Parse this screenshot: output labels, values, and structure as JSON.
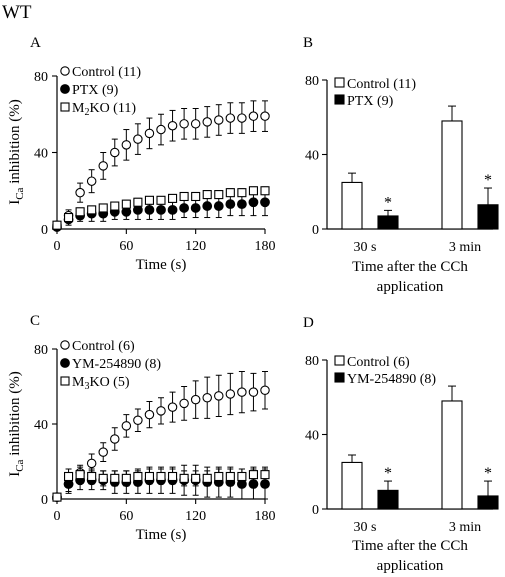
{
  "figure_title": "WT",
  "chart_data": [
    {
      "type": "scatter",
      "panel_label": "A",
      "xlabel": "Time (s)",
      "ylabel_main": "I",
      "ylabel_sub": "Ca",
      "ylabel_rest": " inhibition (%)",
      "xlim": [
        0,
        180
      ],
      "ylim": [
        0,
        80
      ],
      "xticks": [
        0,
        60,
        120,
        180
      ],
      "yticks": [
        0,
        40,
        80
      ],
      "series": [
        {
          "name": "Control (11)",
          "marker": "open-circle",
          "x": [
            0,
            10,
            20,
            30,
            40,
            50,
            60,
            70,
            80,
            90,
            100,
            110,
            120,
            130,
            140,
            150,
            160,
            170,
            180
          ],
          "values": [
            2,
            7,
            19,
            25,
            33,
            40,
            44,
            47,
            50,
            52,
            54,
            55,
            55,
            56,
            57,
            58,
            58,
            59,
            59
          ],
          "errors": [
            1,
            3,
            5,
            6,
            7,
            7,
            8,
            8,
            8,
            8,
            8,
            8,
            8,
            8,
            8,
            8,
            8,
            8,
            8
          ]
        },
        {
          "name": "PTX (9)",
          "name_main": "PTX (9)",
          "marker": "filled-circle",
          "x": [
            0,
            10,
            20,
            30,
            40,
            50,
            60,
            70,
            80,
            90,
            100,
            110,
            120,
            130,
            140,
            150,
            160,
            170,
            180
          ],
          "values": [
            1,
            5,
            7,
            8,
            8,
            9,
            9,
            10,
            10,
            10,
            10,
            11,
            11,
            12,
            12,
            13,
            13,
            14,
            14
          ],
          "errors": [
            1,
            3,
            3,
            4,
            4,
            4,
            4,
            5,
            5,
            5,
            5,
            5,
            5,
            6,
            6,
            6,
            6,
            7,
            7
          ]
        },
        {
          "name": "M2KO (11)",
          "name_main": "M",
          "name_sub": "2",
          "name_rest": "KO (11)",
          "marker": "open-square",
          "x": [
            0,
            10,
            20,
            30,
            40,
            50,
            60,
            70,
            80,
            90,
            100,
            110,
            120,
            130,
            140,
            150,
            160,
            170,
            180
          ],
          "values": [
            2,
            6,
            9,
            10,
            11,
            12,
            13,
            14,
            15,
            15,
            16,
            17,
            17,
            18,
            18,
            19,
            19,
            20,
            20
          ],
          "errors": [
            1,
            2,
            2,
            2,
            2,
            2,
            2,
            2,
            2,
            2,
            2,
            2,
            2,
            2,
            2,
            2,
            2,
            2,
            2
          ]
        }
      ]
    },
    {
      "type": "bar",
      "panel_label": "B",
      "categories": [
        "30 s",
        "3 min"
      ],
      "xlabel_line1": "Time after the CCh",
      "xlabel_line2": "application",
      "ylim": [
        0,
        80
      ],
      "yticks": [
        0,
        40,
        80
      ],
      "series": [
        {
          "name": "Control (11)",
          "fill": "#ffffff",
          "values": [
            25,
            58
          ],
          "errors": [
            5,
            8
          ]
        },
        {
          "name": "PTX (9)",
          "fill": "#000000",
          "values": [
            7,
            13
          ],
          "errors": [
            3,
            9
          ]
        }
      ],
      "annotations": [
        {
          "text": "*",
          "category": "30 s",
          "series": 1
        },
        {
          "text": "*",
          "category": "3 min",
          "series": 1
        }
      ]
    },
    {
      "type": "scatter",
      "panel_label": "C",
      "xlabel": "Time (s)",
      "ylabel_main": "I",
      "ylabel_sub": "Ca",
      "ylabel_rest": " inhibition (%)",
      "xlim": [
        0,
        180
      ],
      "ylim": [
        0,
        80
      ],
      "xticks": [
        0,
        60,
        120,
        180
      ],
      "yticks": [
        0,
        40,
        80
      ],
      "series": [
        {
          "name": "Control (6)",
          "marker": "open-circle",
          "x": [
            0,
            10,
            20,
            30,
            40,
            50,
            60,
            70,
            80,
            90,
            100,
            110,
            120,
            130,
            140,
            150,
            160,
            170,
            180
          ],
          "values": [
            1,
            8,
            14,
            19,
            25,
            32,
            39,
            42,
            45,
            47,
            49,
            51,
            53,
            54,
            55,
            56,
            57,
            57,
            58
          ],
          "errors": [
            1,
            4,
            4,
            5,
            5,
            6,
            6,
            6,
            7,
            7,
            8,
            9,
            10,
            11,
            11,
            11,
            11,
            10,
            10
          ]
        },
        {
          "name": "YM-254890 (8)",
          "marker": "filled-circle",
          "x": [
            0,
            10,
            20,
            30,
            40,
            50,
            60,
            70,
            80,
            90,
            100,
            110,
            120,
            130,
            140,
            150,
            160,
            170,
            180
          ],
          "values": [
            1,
            8,
            10,
            10,
            10,
            9,
            9,
            9,
            10,
            10,
            10,
            10,
            10,
            9,
            9,
            9,
            8,
            8,
            8
          ],
          "errors": [
            1,
            5,
            5,
            5,
            5,
            6,
            6,
            6,
            7,
            7,
            7,
            8,
            8,
            8,
            8,
            8,
            8,
            8,
            8
          ]
        },
        {
          "name": "M3KO (5)",
          "name_main": "M",
          "name_sub": "3",
          "name_rest": "KO (5)",
          "marker": "open-square",
          "x": [
            0,
            10,
            20,
            30,
            40,
            50,
            60,
            70,
            80,
            90,
            100,
            110,
            120,
            130,
            140,
            150,
            160,
            170,
            180
          ],
          "values": [
            1,
            12,
            13,
            12,
            11,
            11,
            11,
            12,
            12,
            12,
            12,
            11,
            11,
            11,
            12,
            12,
            12,
            13,
            13
          ],
          "errors": [
            1,
            4,
            4,
            4,
            4,
            4,
            4,
            4,
            4,
            4,
            4,
            4,
            4,
            4,
            4,
            4,
            4,
            4,
            4
          ]
        }
      ]
    },
    {
      "type": "bar",
      "panel_label": "D",
      "categories": [
        "30 s",
        "3 min"
      ],
      "xlabel_line1": "Time after the CCh",
      "xlabel_line2": "application",
      "ylim": [
        0,
        80
      ],
      "yticks": [
        0,
        40,
        80
      ],
      "series": [
        {
          "name": "Control (6)",
          "fill": "#ffffff",
          "values": [
            25,
            58
          ],
          "errors": [
            4,
            8
          ]
        },
        {
          "name": "YM-254890 (8)",
          "fill": "#000000",
          "values": [
            10,
            7
          ],
          "errors": [
            5,
            8
          ]
        }
      ],
      "annotations": [
        {
          "text": "*",
          "category": "30 s",
          "series": 1
        },
        {
          "text": "*",
          "category": "3 min",
          "series": 1
        }
      ]
    }
  ]
}
